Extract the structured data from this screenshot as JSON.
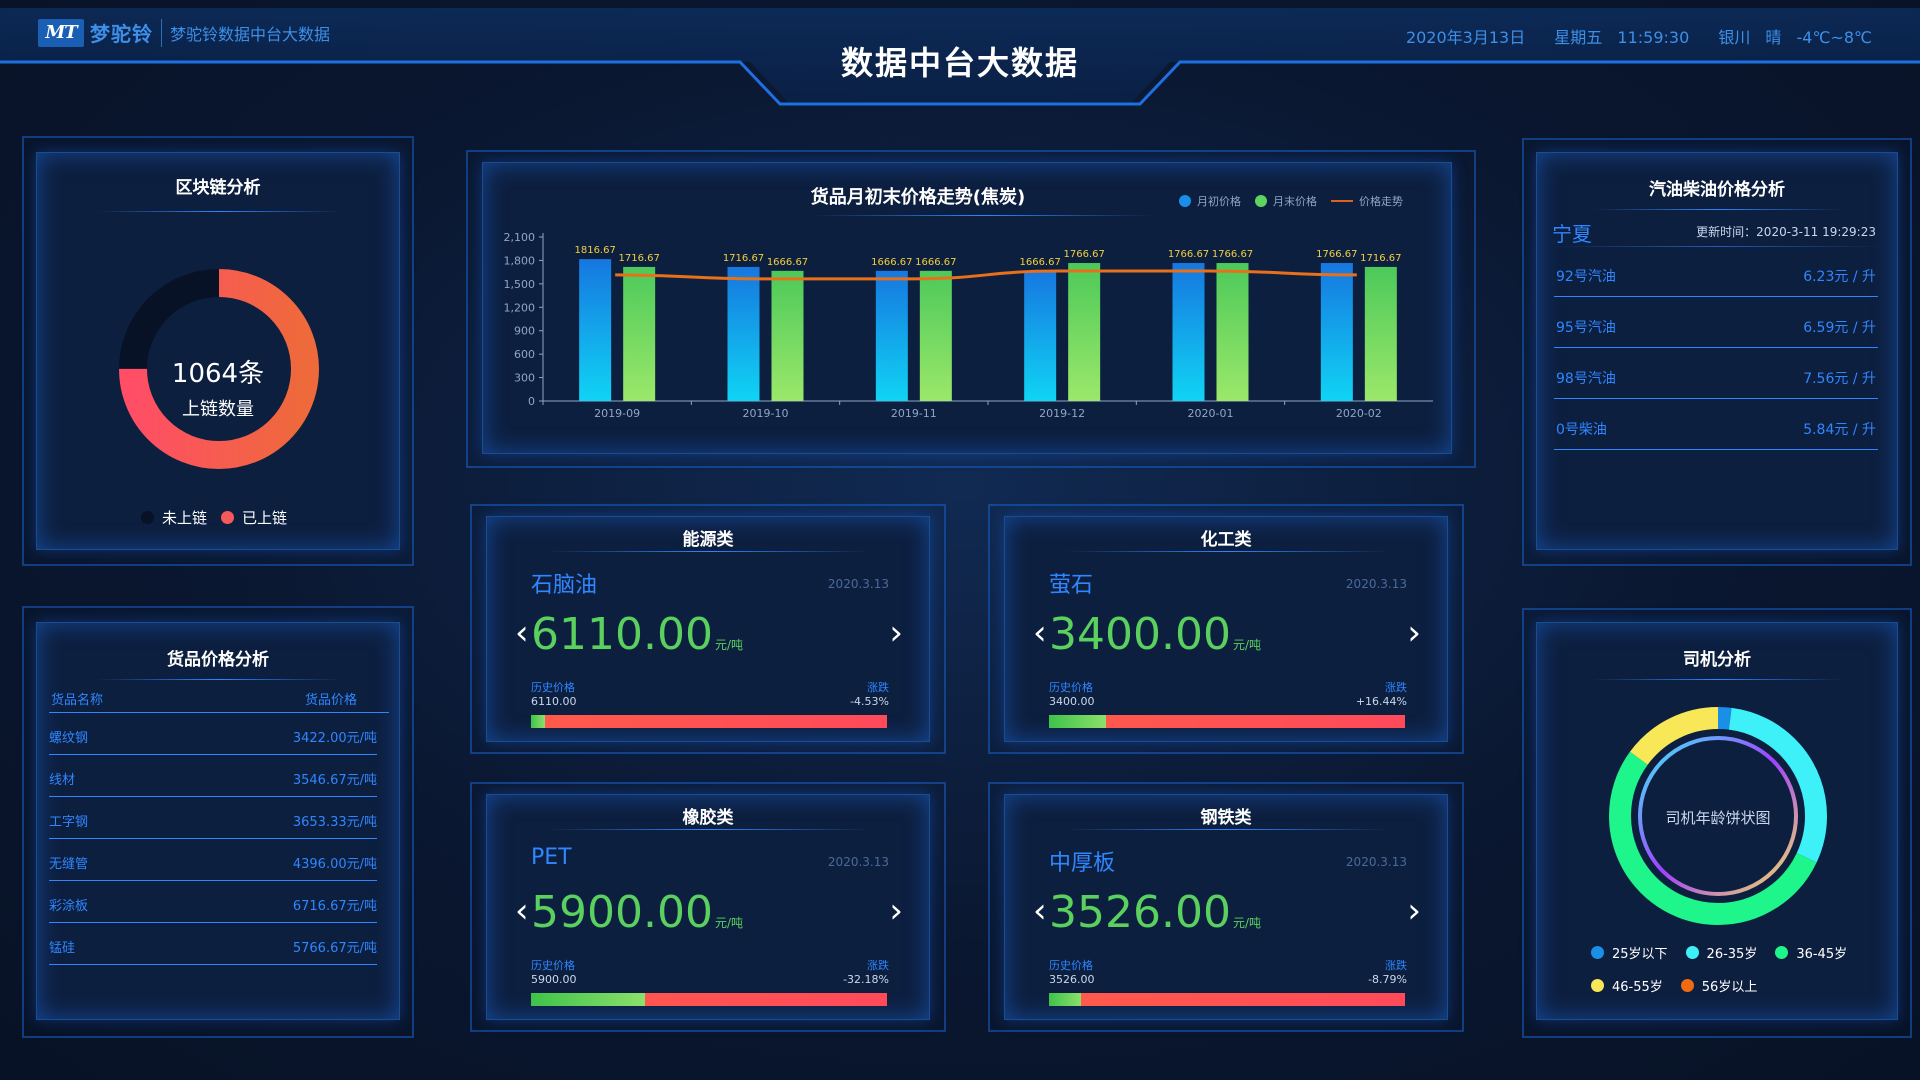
{
  "header": {
    "logo_mark": "MT",
    "brand": "梦驼铃",
    "subtitle": "梦驼铃数据中台大数据",
    "title": "数据中台大数据",
    "date": "2020年3月13日",
    "weekday_time": "星期五 11:59:30",
    "weather": "银川 晴 -4℃~8℃"
  },
  "blockchain": {
    "title": "区块链分析",
    "center_value": "1064条",
    "center_label": "上链数量",
    "onchain_fraction": 0.75,
    "legend": [
      {
        "label": "未上链",
        "color": "#071226"
      },
      {
        "label": "已上链",
        "color": "#f55a5a"
      }
    ]
  },
  "goods_price": {
    "title": "货品价格分析",
    "columns": [
      "货品名称",
      "货品价格"
    ],
    "rows": [
      {
        "name": "螺纹钢",
        "price": "3422.00元/吨"
      },
      {
        "name": "线材",
        "price": "3546.67元/吨"
      },
      {
        "name": "工字钢",
        "price": "3653.33元/吨"
      },
      {
        "name": "无缝管",
        "price": "4396.00元/吨"
      },
      {
        "name": "彩涂板",
        "price": "6716.67元/吨"
      },
      {
        "name": "锰硅",
        "price": "5766.67元/吨"
      }
    ]
  },
  "chart_data": {
    "type": "bar",
    "title": "货品月初末价格走势(焦炭)",
    "categories": [
      "2019-09",
      "2019-10",
      "2019-11",
      "2019-12",
      "2020-01",
      "2020-02"
    ],
    "series": [
      {
        "name": "月初价格",
        "type": "bar",
        "values": [
          1816.67,
          1716.67,
          1666.67,
          1666.67,
          1766.67,
          1766.67
        ],
        "color": "#1a8fe8"
      },
      {
        "name": "月末价格",
        "type": "bar",
        "values": [
          1716.67,
          1666.67,
          1666.67,
          1766.67,
          1766.67,
          1716.67
        ],
        "color": "#5fd35f"
      },
      {
        "name": "价格走势",
        "type": "line",
        "values": [
          1716.67,
          1666.67,
          1666.67,
          1766.67,
          1766.67,
          1716.67
        ],
        "color": "#e8701a"
      }
    ],
    "yticks": [
      "0",
      "300",
      "600",
      "900",
      "1,200",
      "1,500",
      "1,800",
      "2,100"
    ],
    "ylim": [
      0,
      2100
    ],
    "legend_position": "top-right"
  },
  "fuel": {
    "title": "汽油柴油价格分析",
    "region": "宁夏",
    "update": "更新时间：2020-3-11 19:29:23",
    "rows": [
      {
        "name": "92号汽油",
        "price": "6.23元 / 升"
      },
      {
        "name": "95号汽油",
        "price": "6.59元 / 升"
      },
      {
        "name": "98号汽油",
        "price": "7.56元 / 升"
      },
      {
        "name": "0号柴油",
        "price": "5.84元 / 升"
      }
    ]
  },
  "cards": [
    {
      "title": "能源类",
      "product": "石脑油",
      "date": "2020.3.13",
      "price": "6110.00",
      "unit": "元/吨",
      "hist_label": "历史价格",
      "hist_value": "6110.00",
      "change_label": "涨跌",
      "change_value": "-4.53%",
      "fill": 0.04
    },
    {
      "title": "化工类",
      "product": "萤石",
      "date": "2020.3.13",
      "price": "3400.00",
      "unit": "元/吨",
      "hist_label": "历史价格",
      "hist_value": "3400.00",
      "change_label": "涨跌",
      "change_value": "+16.44%",
      "fill": 0.16
    },
    {
      "title": "橡胶类",
      "product": "PET",
      "date": "2020.3.13",
      "price": "5900.00",
      "unit": "元/吨",
      "hist_label": "历史价格",
      "hist_value": "5900.00",
      "change_label": "涨跌",
      "change_value": "-32.18%",
      "fill": 0.32
    },
    {
      "title": "钢铁类",
      "product": "中厚板",
      "date": "2020.3.13",
      "price": "3526.00",
      "unit": "元/吨",
      "hist_label": "历史价格",
      "hist_value": "3526.00",
      "change_label": "涨跌",
      "change_value": "-8.79%",
      "fill": 0.09
    }
  ],
  "driver": {
    "title": "司机分析",
    "center_label": "司机年龄饼状图",
    "segments": [
      {
        "label": "25岁以下",
        "color": "#1a8fe8",
        "value": 2
      },
      {
        "label": "26-35岁",
        "color": "#3ef0f8",
        "value": 30
      },
      {
        "label": "36-45岁",
        "color": "#1ef58a",
        "value": 53
      },
      {
        "label": "46-55岁",
        "color": "#f8e858",
        "value": 15
      },
      {
        "label": "56岁以上",
        "color": "#f06a12",
        "value": 0
      }
    ]
  }
}
